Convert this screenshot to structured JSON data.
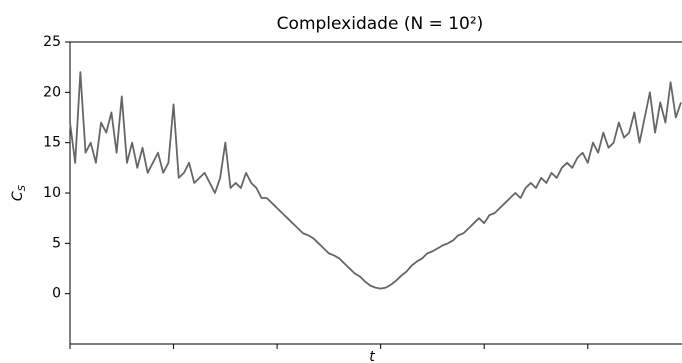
{
  "chart_data": {
    "type": "line",
    "title": "Complexidade (N = 10²)",
    "ylabel": "C_S",
    "xlabel": "t",
    "x": [
      0,
      5,
      10,
      15,
      20,
      25,
      30,
      35,
      40,
      45,
      50,
      55,
      60,
      65,
      70,
      75,
      80,
      85,
      90,
      95,
      100,
      105,
      110,
      115,
      120,
      125,
      130,
      135,
      140,
      145,
      150,
      155,
      160,
      165,
      170,
      175,
      180,
      185,
      190,
      195,
      200,
      205,
      210,
      215,
      220,
      225,
      230,
      235,
      240,
      245,
      250,
      255,
      260,
      265,
      270,
      275,
      280,
      285,
      290,
      295,
      300,
      305,
      310,
      315,
      320,
      325,
      330,
      335,
      340,
      345,
      350,
      355,
      360,
      365,
      370,
      375,
      380,
      385,
      390,
      395,
      400,
      405,
      410,
      415,
      420,
      425,
      430,
      435,
      440,
      445,
      450,
      455,
      460,
      465,
      470,
      475,
      480,
      485,
      490,
      495,
      500,
      505,
      510,
      515,
      520,
      525,
      530,
      535,
      540,
      545,
      550,
      555,
      560,
      565,
      570,
      575,
      580,
      585,
      590
    ],
    "series": [
      {
        "color": "#666666",
        "values": [
          17,
          13,
          22,
          14,
          15,
          13,
          17,
          16,
          18,
          14,
          19.6,
          13,
          15,
          12.5,
          14.5,
          12,
          13,
          14,
          12,
          13,
          18.8,
          11.5,
          12,
          13,
          11,
          11.5,
          12,
          11,
          10,
          11.5,
          15,
          10.5,
          11,
          10.5,
          12,
          11,
          10.5,
          9.5,
          9.5,
          9,
          8.5,
          8,
          7.5,
          7,
          6.5,
          6,
          5.8,
          5.5,
          5,
          4.5,
          4,
          3.8,
          3.5,
          3,
          2.5,
          2,
          1.7,
          1.2,
          0.8,
          0.6,
          0.5,
          0.6,
          0.9,
          1.3,
          1.8,
          2.2,
          2.8,
          3.2,
          3.5,
          4,
          4.2,
          4.5,
          4.8,
          5,
          5.3,
          5.8,
          6,
          6.5,
          7,
          7.5,
          7,
          7.8,
          8,
          8.5,
          9,
          9.5,
          10,
          9.5,
          10.5,
          11,
          10.5,
          11.5,
          11,
          12,
          11.5,
          12.5,
          13,
          12.5,
          13.5,
          14,
          13,
          15,
          14,
          16,
          14.5,
          15,
          17,
          15.5,
          16,
          18,
          15,
          17.5,
          20,
          16,
          19,
          17,
          21,
          17.5,
          19
        ]
      }
    ],
    "xlim": [
      0,
      591
    ],
    "xticks": [
      0,
      100,
      200,
      300,
      400,
      500
    ],
    "ylim": [
      -5,
      25
    ],
    "yticks": [
      0,
      5,
      10,
      15,
      20,
      25
    ]
  }
}
